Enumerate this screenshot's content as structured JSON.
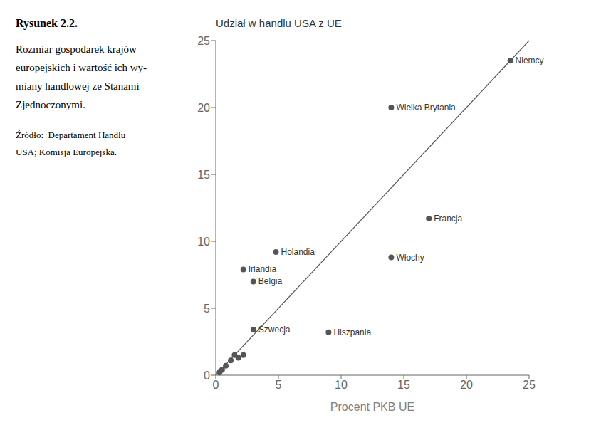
{
  "chart_data": {
    "type": "scatter",
    "title": "Udział w handlu USA z UE",
    "xlabel": "Procent PKB UE",
    "xlim": [
      0,
      25
    ],
    "ylim": [
      0,
      25
    ],
    "xticks": [
      0,
      5,
      10,
      15,
      20,
      25
    ],
    "yticks": [
      0,
      5,
      10,
      15,
      20,
      25
    ],
    "color": "#555555",
    "points": [
      {
        "x": 23.5,
        "y": 23.5,
        "label": "Niemcy"
      },
      {
        "x": 14.0,
        "y": 20.0,
        "label": "Wielka Brytania"
      },
      {
        "x": 17.0,
        "y": 11.7,
        "label": "Francja"
      },
      {
        "x": 14.0,
        "y": 8.8,
        "label": "Włochy"
      },
      {
        "x": 4.8,
        "y": 9.2,
        "label": "Holandia"
      },
      {
        "x": 2.2,
        "y": 7.9,
        "label": "Irlandia"
      },
      {
        "x": 3.0,
        "y": 7.0,
        "label": "Belgia"
      },
      {
        "x": 9.0,
        "y": 3.2,
        "label": "Hiszpania"
      },
      {
        "x": 3.0,
        "y": 3.4,
        "label": "Szwecja"
      },
      {
        "x": 1.5,
        "y": 1.5
      },
      {
        "x": 1.8,
        "y": 1.3
      },
      {
        "x": 1.2,
        "y": 1.1
      },
      {
        "x": 0.8,
        "y": 0.7
      },
      {
        "x": 0.5,
        "y": 0.4
      },
      {
        "x": 0.3,
        "y": 0.2
      },
      {
        "x": 2.2,
        "y": 1.5
      }
    ]
  },
  "panel": {
    "title": "Rysunek 2.2.",
    "lines": [
      "Rozmiar gospodarek krajów",
      "europejskich i wartość ich wy-",
      "miany handlowej ze Stanami",
      "Zjednoczonymi."
    ],
    "source": [
      "Źródło:  Departament Handlu",
      "USA; Komisja Europejska."
    ]
  }
}
